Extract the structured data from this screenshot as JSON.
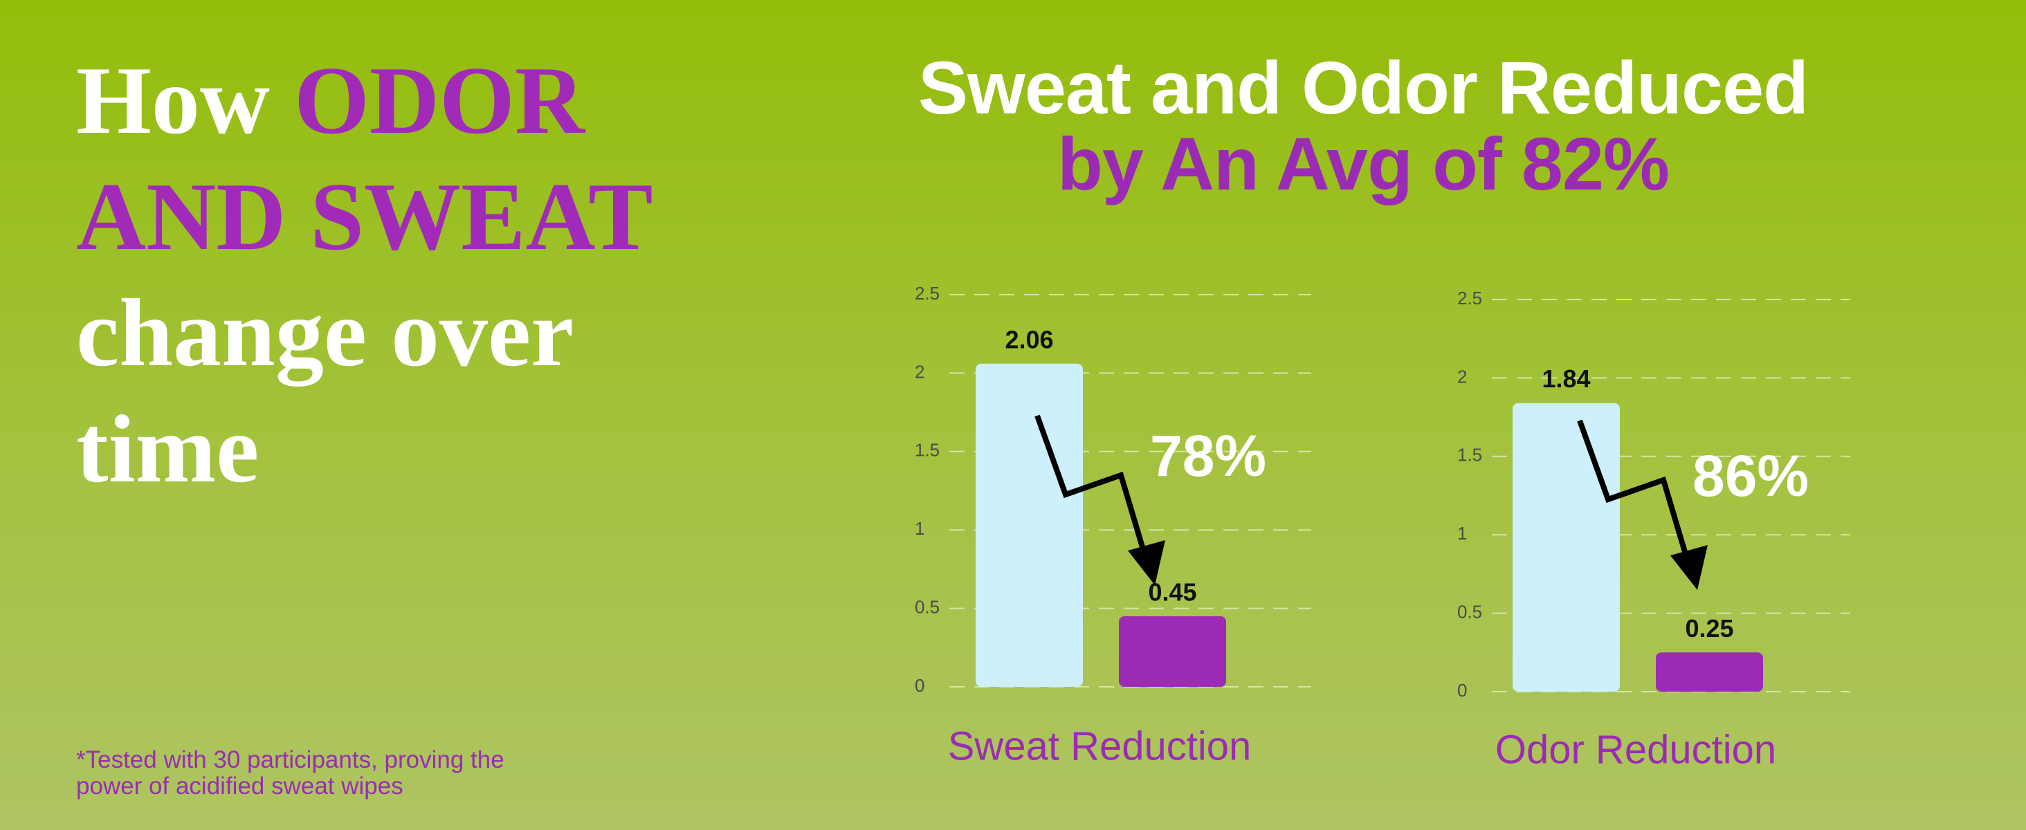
{
  "heading": [
    "How",
    "ODOR AND SWEAT",
    "change over time"
  ],
  "subtitle": [
    "Sweat and Odor Reduced",
    "by An Avg of 82%"
  ],
  "footnote": "*Tested with 30 participants, proving the power of acidified sweat wipes",
  "chart_data": [
    {
      "type": "bar",
      "title": "Sweat Reduction",
      "categories": [
        null,
        null
      ],
      "values": [
        2.06,
        0.45
      ],
      "colors": [
        "#cdf0fc",
        "#9b2bb5"
      ],
      "ylim": [
        0,
        2.5
      ],
      "yticks": [
        0,
        0.5,
        1,
        1.5,
        2,
        2.5
      ],
      "grid": true,
      "annotation": "78%"
    },
    {
      "type": "bar",
      "title": "Odor Reduction",
      "categories": [
        null,
        null
      ],
      "values": [
        1.84,
        0.25
      ],
      "colors": [
        "#cdf0fc",
        "#9b2bb5"
      ],
      "ylim": [
        0,
        2.5
      ],
      "yticks": [
        0,
        0.5,
        1,
        1.5,
        2,
        2.5
      ],
      "grid": true,
      "annotation": "86%"
    }
  ]
}
